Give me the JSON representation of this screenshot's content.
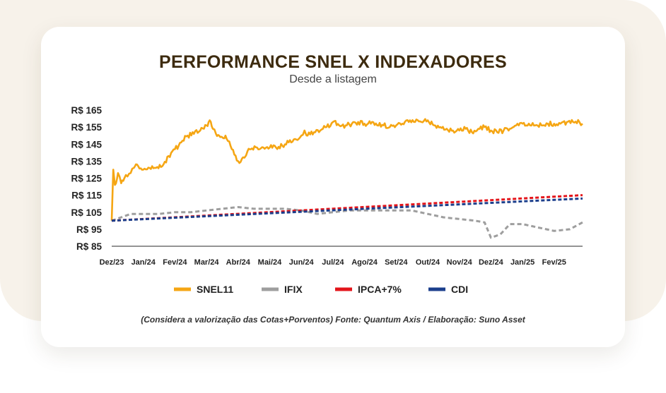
{
  "title": "PERFORMANCE SNEL X INDEXADORES",
  "subtitle": "Desde a listagem",
  "footnote": "(Considera a valorização das Cotas+Porventos) Fonte: Quantum Axis / Elaboração: Suno Asset",
  "chart_data": {
    "type": "line",
    "title": "PERFORMANCE SNEL X INDEXADORES",
    "subtitle": "Desde a listagem",
    "x_tick_labels": [
      "Dez/23",
      "Jan/24",
      "Fev/24",
      "Mar/24",
      "Abr/24",
      "Mai/24",
      "Jun/24",
      "Jul/24",
      "Ago/24",
      "Set/24",
      "Out/24",
      "Nov/24",
      "Dez/24",
      "Jan/25",
      "Fev/25"
    ],
    "y_tick_labels": [
      "R$ 165",
      "R$ 155",
      "R$ 145",
      "R$ 135",
      "R$ 125",
      "R$ 115",
      "R$ 105",
      "R$ 95",
      "R$ 85"
    ],
    "y_ticks": [
      165,
      155,
      145,
      135,
      125,
      115,
      105,
      95,
      85
    ],
    "ylim": [
      85,
      165
    ],
    "x_domain_months": [
      0,
      14.9
    ],
    "grid": false,
    "legend_position": "bottom",
    "series": [
      {
        "name": "SNEL11",
        "color": "#f5a614",
        "style": "solid",
        "x": [
          0,
          0.05,
          0.1,
          0.2,
          0.3,
          0.4,
          0.5,
          0.6,
          0.7,
          0.8,
          1.0,
          1.2,
          1.4,
          1.6,
          1.8,
          2.0,
          2.2,
          2.4,
          2.6,
          2.8,
          3.0,
          3.1,
          3.2,
          3.3,
          3.4,
          3.5,
          3.6,
          3.8,
          4.0,
          4.2,
          4.3,
          4.4,
          4.6,
          4.8,
          5.0,
          5.2,
          5.4,
          5.6,
          5.8,
          6.0,
          6.1,
          6.2,
          6.4,
          6.6,
          6.8,
          7.0,
          7.2,
          7.4,
          7.6,
          7.8,
          8.0,
          8.2,
          8.4,
          8.6,
          8.8,
          9.0,
          9.2,
          9.4,
          9.6,
          9.8,
          10.0,
          10.2,
          10.4,
          10.6,
          10.8,
          11.0,
          11.2,
          11.4,
          11.6,
          11.8,
          12.0,
          12.2,
          12.4,
          12.6,
          12.8,
          13.0,
          13.2,
          13.4,
          13.6,
          13.8,
          14.0,
          14.2,
          14.4,
          14.6,
          14.8,
          14.9
        ],
        "values": [
          100,
          130,
          121,
          128,
          122,
          125,
          126,
          128,
          131,
          133,
          130,
          131,
          131,
          132,
          138,
          142,
          146,
          150,
          151,
          153,
          156,
          159,
          154,
          151,
          150,
          149,
          150,
          142,
          135,
          137,
          141,
          142,
          143,
          143,
          143,
          143,
          144,
          146,
          148,
          150,
          153,
          150,
          152,
          153,
          155,
          158,
          156,
          156,
          157,
          158,
          157,
          157,
          156,
          156,
          155,
          156,
          157,
          158,
          158,
          158,
          159,
          156,
          155,
          154,
          153,
          153,
          154,
          152,
          154,
          155,
          153,
          152,
          153,
          154,
          156,
          157,
          157,
          156,
          156,
          157,
          157,
          157,
          158,
          158,
          158,
          157
        ],
        "ylim_note": ""
      },
      {
        "name": "IFIX",
        "color": "#9e9e9e",
        "style": "dashed",
        "x": [
          0,
          0.3,
          0.6,
          1.0,
          1.5,
          2.0,
          2.5,
          3.0,
          3.5,
          4.0,
          4.5,
          5.0,
          5.5,
          6.0,
          6.5,
          7.0,
          7.5,
          8.0,
          8.5,
          9.0,
          9.5,
          10.0,
          10.5,
          11.0,
          11.5,
          11.8,
          12.0,
          12.3,
          12.6,
          13.0,
          13.5,
          14.0,
          14.5,
          14.9
        ],
        "values": [
          100,
          102,
          104,
          104,
          104,
          105,
          105,
          106,
          107,
          108,
          107,
          107,
          107,
          106,
          104,
          105,
          106,
          106,
          106,
          106,
          106,
          104,
          102,
          101,
          100,
          99,
          90,
          92,
          98,
          98,
          96,
          94,
          95,
          99
        ]
      },
      {
        "name": "IPCA+7%",
        "color": "#e3151b",
        "style": "dashed",
        "x": [
          0,
          14.9
        ],
        "values": [
          100,
          115
        ]
      },
      {
        "name": "CDI",
        "color": "#1c3f8c",
        "style": "dashed",
        "x": [
          0,
          14.9
        ],
        "values": [
          100,
          113
        ]
      }
    ]
  }
}
